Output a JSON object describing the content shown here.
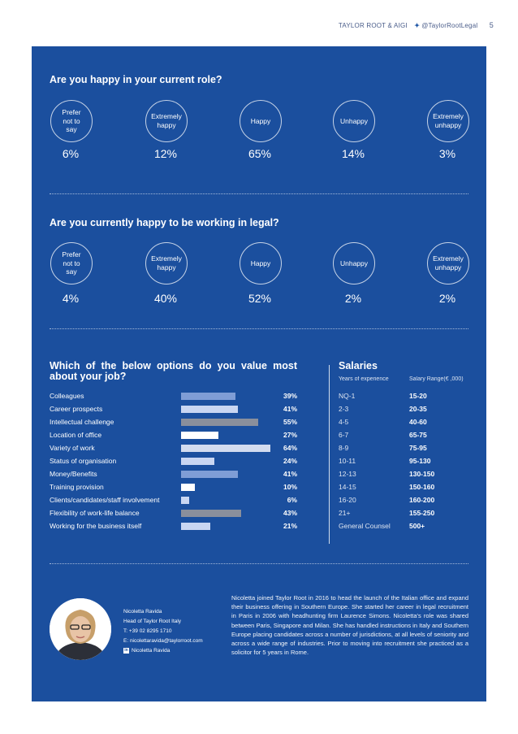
{
  "header": {
    "brand": "TAYLOR ROOT & AIGI",
    "twitter": "@TaylorRootLegal",
    "page": "5"
  },
  "q1": {
    "title": "Are you happy in your current role?",
    "options": [
      {
        "label": "Prefer\nnot to\nsay",
        "pct": "6%"
      },
      {
        "label": "Extremely\nhappy",
        "pct": "12%"
      },
      {
        "label": "Happy",
        "pct": "65%"
      },
      {
        "label": "Unhappy",
        "pct": "14%"
      },
      {
        "label": "Extremely\nunhappy",
        "pct": "3%"
      }
    ]
  },
  "q2": {
    "title": "Are you currently happy to be working in legal?",
    "options": [
      {
        "label": "Prefer\nnot to\nsay",
        "pct": "4%"
      },
      {
        "label": "Extremely\nhappy",
        "pct": "40%"
      },
      {
        "label": "Happy",
        "pct": "52%"
      },
      {
        "label": "Unhappy",
        "pct": "2%"
      },
      {
        "label": "Extremely\nunhappy",
        "pct": "2%"
      }
    ]
  },
  "values": {
    "title_line1": "Which of the below options do you value most",
    "title_line2": "about your job?",
    "rows": [
      {
        "label": "Colleagues",
        "pct": "39%",
        "value": 39,
        "color": "#7f9dd6"
      },
      {
        "label": "Career prospects",
        "pct": "41%",
        "value": 41,
        "color": "#c9d6f2"
      },
      {
        "label": "Intellectual challenge",
        "pct": "55%",
        "value": 55,
        "color": "#8a8f9c"
      },
      {
        "label": "Location of office",
        "pct": "27%",
        "value": 27,
        "color": "#ffffff"
      },
      {
        "label": "Variety of work",
        "pct": "64%",
        "value": 64,
        "color": "#d3dcef"
      },
      {
        "label": "Status of organisation",
        "pct": "24%",
        "value": 24,
        "color": "#c9d6f2"
      },
      {
        "label": "Money/Benefits",
        "pct": "41%",
        "value": 41,
        "color": "#7f9dd6"
      },
      {
        "label": "Training provision",
        "pct": "10%",
        "value": 10,
        "color": "#ffffff"
      },
      {
        "label": "Clients/candidates/staff involvement",
        "pct": "6%",
        "value": 6,
        "color": "#c9d6f2"
      },
      {
        "label": "Flexibility of work-life balance",
        "pct": "43%",
        "value": 43,
        "color": "#8a8f9c"
      },
      {
        "label": "Working for the business itself",
        "pct": "21%",
        "value": 21,
        "color": "#c9d6f2"
      }
    ]
  },
  "salaries": {
    "title": "Salaries",
    "col1": "Years of experience",
    "col2": "Salary Range(€ ,000)",
    "rows": [
      {
        "years": "NQ-1",
        "range": "15-20"
      },
      {
        "years": "2-3",
        "range": "20-35"
      },
      {
        "years": "4-5",
        "range": "40-60"
      },
      {
        "years": "6-7",
        "range": "65-75"
      },
      {
        "years": "8-9",
        "range": "75-95"
      },
      {
        "years": "10-11",
        "range": "95-130"
      },
      {
        "years": "12-13",
        "range": "130-150"
      },
      {
        "years": "14-15",
        "range": "150-160"
      },
      {
        "years": "16-20",
        "range": "160-200"
      },
      {
        "years": "21+",
        "range": "155-250"
      },
      {
        "years": "General Counsel",
        "range": "500+"
      }
    ]
  },
  "contact": {
    "name": "Nicoletta Ravida",
    "role": "Head of Taylor Root Italy",
    "phone": "T: +39 02 8295 1710",
    "email": "E: nicolettaravida@taylorroot.com",
    "linkedin": "Nicoletta Ravida"
  },
  "bio": "Nicoletta joined Taylor Root in 2016 to head the launch of the Italian office and expand their business offering in Southern Europe. She started her career in legal recruitment in Paris in 2006 with headhunting firm Laurence Simons. Nicoletta's role was shared between Paris, Singapore and Milan. She has handled instructions in Italy and Southern Europe placing candidates across a number of jurisdictions, at all levels of seniority and across a wide range of industries. Prior to moving into recruitment she practiced as a solicitor for 5 years in Rome."
}
